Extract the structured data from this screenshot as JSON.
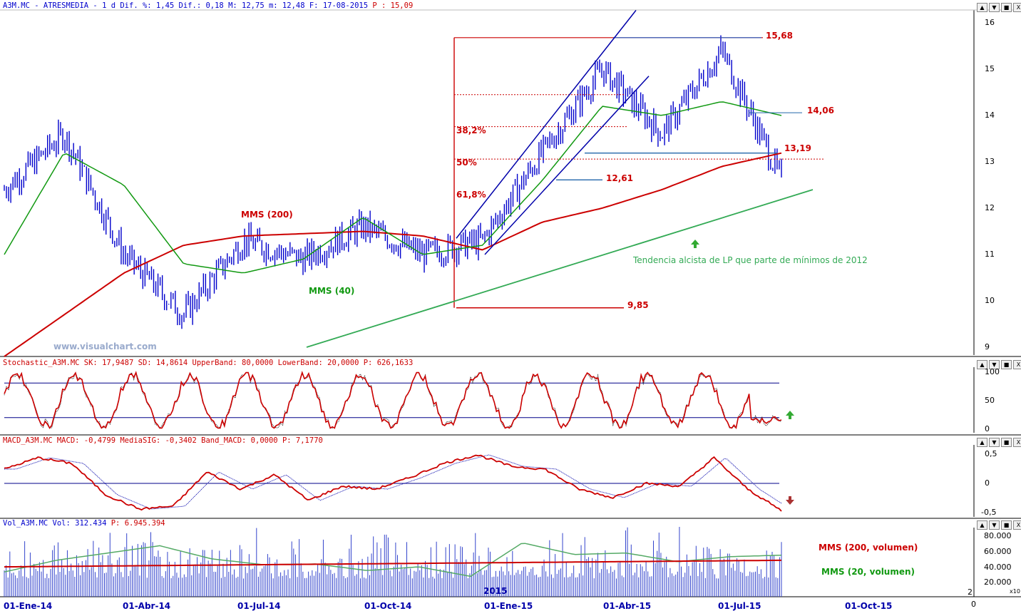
{
  "header": {
    "main_prefix": "A3M.MC - ATRESMEDIA - 1 d Dif. %: 1,45 Dif.: 0,18 M: 12,75 m: 12,48 F: 17-08-2015",
    "main_p": "P : 15,09",
    "stoch_prefix": "Stochastic_A3M.MC SK: 17,9487 SD: 14,8614 UpperBand: 80,0000 LowerBand: 20,0000",
    "stoch_p": "P: 626,1633",
    "macd_prefix": "MACD_A3M.MC MACD: -0,4799 MediaSIG: -0,3402 Band_MACD: 0,0000",
    "macd_p": "P: 7,1770",
    "vol_prefix": "Vol_A3M.MC Vol: 312.434",
    "vol_p": "P: 6.945.394"
  },
  "window_buttons": [
    "▲",
    "▼",
    "■",
    "X"
  ],
  "watermark": "www.visualchart.com",
  "annotations": {
    "mms200": "MMS (200)",
    "mms40": "MMS (40)",
    "fib382": "38,2%",
    "fib50": "50%",
    "fib618": "61,8%",
    "lvl_1568": "15,68",
    "lvl_1406": "14,06",
    "lvl_1319": "13,19",
    "lvl_1261": "12,61",
    "lvl_985": "9,85",
    "trend_note": "Tendencia alcista de LP que parte de mínimos de 2012",
    "mms200_vol": "MMS (200, volumen)",
    "mms20_vol": "MMS (20, volumen)",
    "year_mark": "2015",
    "x10": "x10",
    "corner_2": "2"
  },
  "x_labels": [
    "01-Ene-14",
    "01-Abr-14",
    "01-Jul-14",
    "01-Oct-14",
    "01-Ene-15",
    "01-Abr-15",
    "01-Jul-15",
    "01-Oct-15"
  ],
  "y_price_ticks": [
    "16",
    "15",
    "14",
    "13",
    "12",
    "11",
    "10",
    "9"
  ],
  "y_stoch_ticks": [
    "100",
    "50",
    "0"
  ],
  "y_macd_ticks": [
    "0,5",
    "0",
    "-0,5"
  ],
  "y_vol_ticks": [
    "80.000",
    "60.000",
    "40.000",
    "20.000"
  ],
  "y_right_last": "0",
  "colors": {
    "price": "#0000cc",
    "mms200": "#cc0000",
    "mms40": "#119911",
    "fib": "#cc0000",
    "trend": "#33aa55",
    "arrow_up": "#33aa33",
    "arrow_down": "#aa3333"
  },
  "chart_data": [
    {
      "type": "line",
      "title": "A3M.MC - ATRESMEDIA",
      "x": [
        "2014-01-01",
        "2014-02-15",
        "2014-04-01",
        "2014-05-15",
        "2014-07-01",
        "2014-08-15",
        "2014-10-01",
        "2014-11-15",
        "2015-01-01",
        "2015-02-15",
        "2015-04-01",
        "2015-05-15",
        "2015-07-01",
        "2015-08-17"
      ],
      "ylim": [
        8.8,
        16.2
      ],
      "series": [
        {
          "name": "Price",
          "values": [
            12.4,
            13.6,
            11.0,
            9.7,
            11.3,
            10.9,
            11.6,
            11.0,
            11.3,
            13.2,
            15.0,
            13.6,
            15.4,
            12.6
          ]
        },
        {
          "name": "MMS (200)",
          "values": [
            8.8,
            9.7,
            10.6,
            11.2,
            11.4,
            11.45,
            11.5,
            11.4,
            11.1,
            11.7,
            12.0,
            12.4,
            12.9,
            13.19
          ]
        },
        {
          "name": "MMS (40)",
          "values": [
            11.0,
            13.2,
            12.5,
            10.8,
            10.6,
            10.9,
            11.8,
            11.0,
            11.2,
            12.6,
            14.2,
            14.0,
            14.3,
            14.0
          ]
        }
      ],
      "levels": [
        15.68,
        14.06,
        13.19,
        12.61,
        9.85
      ]
    },
    {
      "type": "line",
      "title": "Stochastic_A3M.MC",
      "ylim": [
        0,
        100
      ],
      "bands": [
        80,
        20
      ],
      "last": {
        "SK": 17.9487,
        "SD": 14.8614
      }
    },
    {
      "type": "line",
      "title": "MACD_A3M.MC",
      "ylim": [
        -0.6,
        0.6
      ],
      "last": {
        "MACD": -0.4799,
        "MediaSIG": -0.3402
      }
    },
    {
      "type": "bar",
      "title": "Vol_A3M.MC",
      "ylim": [
        0,
        90000
      ],
      "last": {
        "Vol": 312434
      }
    }
  ]
}
